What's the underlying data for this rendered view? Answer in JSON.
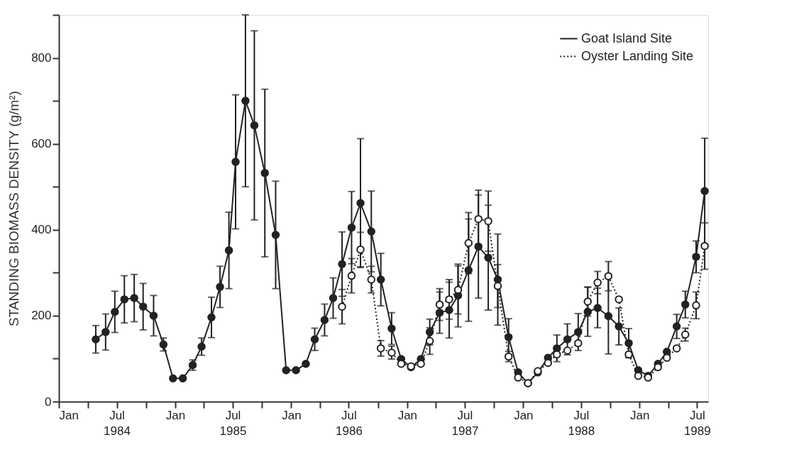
{
  "chart_data": {
    "type": "line",
    "ylabel": "STANDING BIOMASS DENSITY (g/m²)",
    "ylim": [
      0,
      900
    ],
    "yticks": [
      0,
      {
        "value": 100,
        "label": null
      },
      200,
      {
        "value": 300,
        "label": null
      },
      400,
      {
        "value": 500,
        "label": null
      },
      600,
      {
        "value": 700,
        "label": null
      },
      800,
      {
        "value": 900,
        "label": null
      }
    ],
    "xlim": [
      "1984-01-01",
      "1989-08-05"
    ],
    "xticks": [
      {
        "value": "1984-01-01",
        "label": "Jan"
      },
      {
        "value": "1984-04-01",
        "label": null
      },
      {
        "value": "1984-07-01",
        "label": "Jul\n1984"
      },
      {
        "value": "1984-10-01",
        "label": null
      },
      {
        "value": "1985-01-01",
        "label": "Jan"
      },
      {
        "value": "1985-04-01",
        "label": null
      },
      {
        "value": "1985-07-01",
        "label": "Jul\n1985"
      },
      {
        "value": "1985-10-01",
        "label": null
      },
      {
        "value": "1986-01-01",
        "label": "Jan"
      },
      {
        "value": "1986-04-01",
        "label": null
      },
      {
        "value": "1986-07-01",
        "label": "Jul\n1986"
      },
      {
        "value": "1986-10-01",
        "label": null
      },
      {
        "value": "1987-01-01",
        "label": "Jan"
      },
      {
        "value": "1987-04-01",
        "label": null
      },
      {
        "value": "1987-07-01",
        "label": "Jul\n1987"
      },
      {
        "value": "1987-10-01",
        "label": null
      },
      {
        "value": "1988-01-01",
        "label": "Jan"
      },
      {
        "value": "1988-04-01",
        "label": null
      },
      {
        "value": "1988-07-01",
        "label": "Jul\n1988"
      },
      {
        "value": "1988-10-01",
        "label": null
      },
      {
        "value": "1989-01-01",
        "label": "Jan"
      },
      {
        "value": "1989-04-01",
        "label": null
      },
      {
        "value": "1989-07-01",
        "label": "Jul\n1989"
      }
    ],
    "grid": false,
    "legend": "top right",
    "marker": "circle",
    "series": [
      {
        "name": "Goat Island Site",
        "color": "#222222",
        "line_style": "solid",
        "x": [
          "1984-04-26",
          "1984-05-27",
          "1984-06-25",
          "1984-07-25",
          "1984-08-25",
          "1984-09-22",
          "1984-10-25",
          "1984-11-25",
          "1984-12-25",
          "1985-01-25",
          "1985-02-25",
          "1985-03-25",
          "1985-04-25",
          "1985-05-22",
          "1985-06-19",
          "1985-07-10",
          "1985-08-10",
          "1985-09-07",
          "1985-10-10",
          "1985-11-13",
          "1985-12-16",
          "1986-01-16",
          "1986-02-16",
          "1986-03-16",
          "1986-04-16",
          "1986-05-13",
          "1986-06-10",
          "1986-07-10",
          "1986-08-07",
          "1986-09-10",
          "1986-10-10",
          "1986-11-13",
          "1986-12-13",
          "1987-01-13",
          "1987-02-13",
          "1987-03-13",
          "1987-04-13",
          "1987-05-13",
          "1987-06-10",
          "1987-07-13",
          "1987-08-13",
          "1987-09-13",
          "1987-10-13",
          "1987-11-16",
          "1987-12-16",
          "1988-01-16",
          "1988-02-16",
          "1988-03-19",
          "1988-04-16",
          "1988-05-19",
          "1988-06-22",
          "1988-07-22",
          "1988-08-22",
          "1988-09-25",
          "1988-10-28",
          "1988-11-28",
          "1988-12-28",
          "1989-01-28",
          "1989-02-28",
          "1989-03-28",
          "1989-04-28",
          "1989-05-25",
          "1989-06-28",
          "1989-07-25"
        ],
        "values": [
          145,
          162,
          209,
          238,
          241,
          221,
          200,
          133,
          54,
          54,
          85,
          128,
          196,
          267,
          352,
          558,
          700,
          643,
          532,
          388,
          73,
          73,
          88,
          145,
          190,
          241,
          320,
          405,
          462,
          396,
          284,
          170,
          99,
          80,
          99,
          162,
          207,
          213,
          247,
          306,
          361,
          335,
          284,
          150,
          68,
          43,
          68,
          102,
          124,
          145,
          162,
          209,
          218,
          199,
          175,
          136,
          73,
          60,
          88,
          116,
          175,
          226,
          337,
          490
        ],
        "errors": [
          32,
          42,
          48,
          55,
          55,
          54,
          47,
          15,
          null,
          null,
          12,
          20,
          47,
          48,
          89,
          156,
          200,
          220,
          195,
          125,
          null,
          null,
          null,
          26,
          37,
          47,
          75,
          84,
          150,
          94,
          61,
          37,
          null,
          null,
          null,
          30,
          48,
          65,
          73,
          119,
          120,
          122,
          106,
          43,
          null,
          null,
          null,
          null,
          31,
          36,
          43,
          57,
          46,
          88,
          43,
          34,
          null,
          null,
          null,
          null,
          28,
          31,
          37,
          123
        ]
      },
      {
        "name": "Oyster Landing Site",
        "color": "#222222",
        "line_style": "dotted",
        "x": [
          "1986-06-10",
          "1986-07-10",
          "1986-08-07",
          "1986-09-10",
          "1986-10-10",
          "1986-11-13",
          "1986-12-13",
          "1987-01-13",
          "1987-02-13",
          "1987-03-13",
          "1987-04-13",
          "1987-05-13",
          "1987-06-10",
          "1987-07-13",
          "1987-08-13",
          "1987-09-13",
          "1987-10-13",
          "1987-11-16",
          "1987-12-16",
          "1988-01-16",
          "1988-02-16",
          "1988-03-19",
          "1988-04-16",
          "1988-05-19",
          "1988-06-22",
          "1988-07-22",
          "1988-08-22",
          "1988-09-25",
          "1988-10-28",
          "1988-11-28",
          "1988-12-28",
          "1989-01-28",
          "1989-02-28",
          "1989-03-28",
          "1989-04-28",
          "1989-05-25",
          "1989-06-28",
          "1989-07-25"
        ],
        "values": [
          221,
          293,
          354,
          284,
          124,
          114,
          88,
          82,
          88,
          141,
          226,
          238,
          260,
          369,
          425,
          420,
          269,
          105,
          56,
          43,
          71,
          90,
          110,
          119,
          136,
          233,
          277,
          292,
          238,
          110,
          60,
          56,
          80,
          102,
          124,
          156,
          224,
          362
        ],
        "errors": [
          40,
          40,
          40,
          31,
          18,
          15,
          null,
          null,
          null,
          31,
          37,
          46,
          56,
          71,
          67,
          70,
          50,
          12,
          null,
          null,
          null,
          null,
          null,
          null,
          null,
          34,
          26,
          34,
          null,
          null,
          null,
          null,
          null,
          null,
          null,
          15,
          31,
          54
        ]
      }
    ]
  }
}
